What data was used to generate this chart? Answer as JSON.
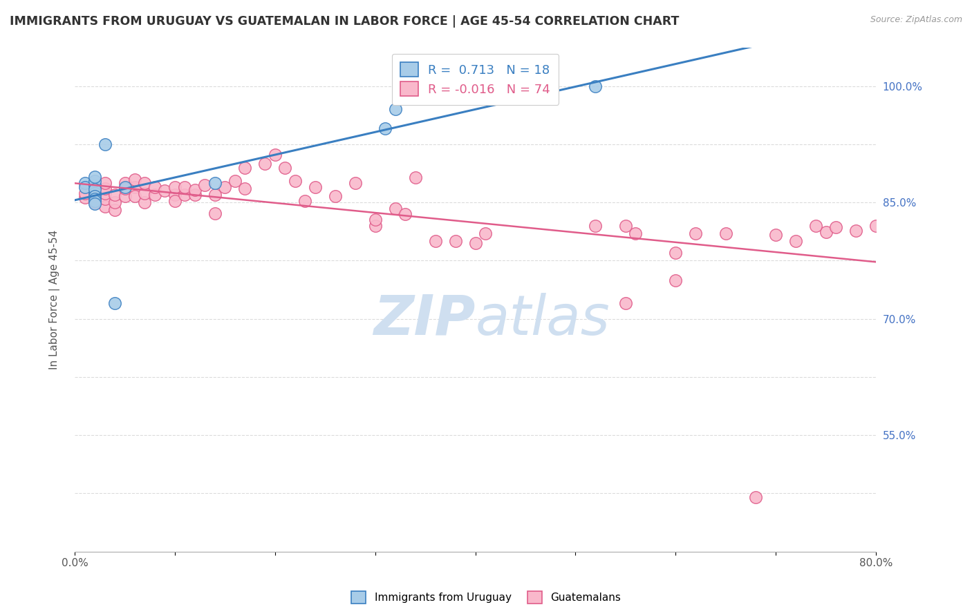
{
  "title": "IMMIGRANTS FROM URUGUAY VS GUATEMALAN IN LABOR FORCE | AGE 45-54 CORRELATION CHART",
  "source_text": "Source: ZipAtlas.com",
  "ylabel": "In Labor Force | Age 45-54",
  "x_min": 0.0,
  "x_max": 0.8,
  "y_min": 0.4,
  "y_max": 1.05,
  "legend_blue_r": "0.713",
  "legend_blue_n": "18",
  "legend_pink_r": "-0.016",
  "legend_pink_n": "74",
  "legend_label_blue": "Immigrants from Uruguay",
  "legend_label_pink": "Guatemalans",
  "blue_color": "#a8cce8",
  "pink_color": "#f9b8cb",
  "blue_line_color": "#3a7fc1",
  "pink_line_color": "#e05c8a",
  "grid_color": "#cccccc",
  "watermark_color": "#cfdff0",
  "y_tick_positions": [
    1.0,
    0.925,
    0.85,
    0.775,
    0.7,
    0.625,
    0.55,
    0.475
  ],
  "y_tick_labels": [
    "100.0%",
    "",
    "85.0%",
    "",
    "70.0%",
    "",
    "55.0%",
    ""
  ],
  "blue_scatter_x": [
    0.01,
    0.01,
    0.02,
    0.02,
    0.02,
    0.02,
    0.02,
    0.02,
    0.02,
    0.02,
    0.02,
    0.03,
    0.04,
    0.05,
    0.14,
    0.31,
    0.32,
    0.52
  ],
  "blue_scatter_y": [
    0.875,
    0.87,
    0.872,
    0.878,
    0.883,
    0.862,
    0.867,
    0.858,
    0.855,
    0.852,
    0.848,
    0.925,
    0.72,
    0.87,
    0.875,
    0.945,
    0.97,
    1.0
  ],
  "pink_scatter_x": [
    0.01,
    0.01,
    0.02,
    0.02,
    0.02,
    0.02,
    0.03,
    0.03,
    0.03,
    0.03,
    0.03,
    0.04,
    0.04,
    0.04,
    0.05,
    0.05,
    0.05,
    0.06,
    0.06,
    0.06,
    0.07,
    0.07,
    0.07,
    0.08,
    0.08,
    0.09,
    0.1,
    0.1,
    0.1,
    0.11,
    0.11,
    0.12,
    0.12,
    0.13,
    0.14,
    0.14,
    0.15,
    0.16,
    0.17,
    0.17,
    0.19,
    0.2,
    0.21,
    0.22,
    0.23,
    0.24,
    0.26,
    0.28,
    0.3,
    0.3,
    0.32,
    0.33,
    0.34,
    0.36,
    0.38,
    0.4,
    0.41,
    0.52,
    0.55,
    0.56,
    0.6,
    0.62,
    0.65,
    0.7,
    0.72,
    0.75,
    0.76,
    0.78,
    0.8,
    0.81,
    0.55,
    0.6,
    0.68,
    0.74
  ],
  "pink_scatter_y": [
    0.856,
    0.862,
    0.85,
    0.858,
    0.864,
    0.87,
    0.845,
    0.855,
    0.862,
    0.868,
    0.875,
    0.84,
    0.85,
    0.86,
    0.875,
    0.858,
    0.868,
    0.87,
    0.858,
    0.88,
    0.85,
    0.862,
    0.875,
    0.86,
    0.87,
    0.865,
    0.86,
    0.87,
    0.852,
    0.86,
    0.87,
    0.86,
    0.866,
    0.872,
    0.86,
    0.836,
    0.87,
    0.878,
    0.895,
    0.868,
    0.9,
    0.912,
    0.895,
    0.878,
    0.852,
    0.87,
    0.858,
    0.875,
    0.82,
    0.828,
    0.842,
    0.835,
    0.882,
    0.8,
    0.8,
    0.798,
    0.81,
    0.82,
    0.82,
    0.81,
    0.785,
    0.81,
    0.81,
    0.808,
    0.8,
    0.812,
    0.818,
    0.814,
    0.82,
    0.82,
    0.72,
    0.75,
    0.47,
    0.82
  ]
}
